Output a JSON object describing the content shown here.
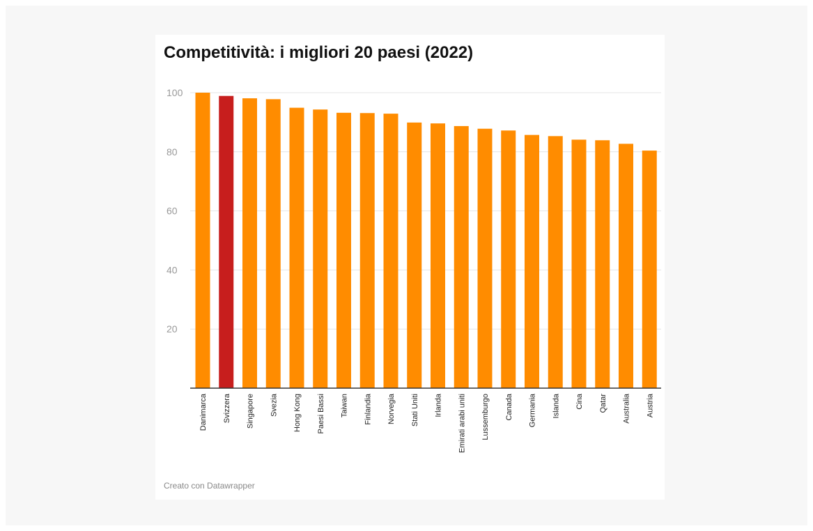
{
  "chart_data": {
    "type": "bar",
    "title": "Competitività: i migliori 20 paesi (2022)",
    "xlabel": "",
    "ylabel": "",
    "ylim": [
      0,
      100
    ],
    "yticks": [
      20,
      40,
      60,
      80,
      100
    ],
    "grid": true,
    "categories": [
      "Danimarca",
      "Svizzera",
      "Singapore",
      "Svezia",
      "Hong Kong",
      "Paesi Bassi",
      "Taiwan",
      "Finlandia",
      "Norvegia",
      "Stati Uniti",
      "Irlanda",
      "Emirati arabi uniti",
      "Lussemburgo",
      "Canada",
      "Germania",
      "Islanda",
      "Cina",
      "Qatar",
      "Australia",
      "Austria"
    ],
    "values": [
      100,
      98.9,
      98.1,
      97.8,
      94.9,
      94.3,
      93.2,
      93.1,
      92.9,
      89.9,
      89.6,
      88.7,
      87.8,
      87.2,
      85.7,
      85.3,
      84.1,
      83.9,
      82.7,
      80.4
    ],
    "colors": {
      "default": "#ff8c00",
      "highlight": "#c71e1d",
      "highlight_category": "Svizzera"
    }
  },
  "footer": {
    "credit": "Creato con Datawrapper"
  }
}
